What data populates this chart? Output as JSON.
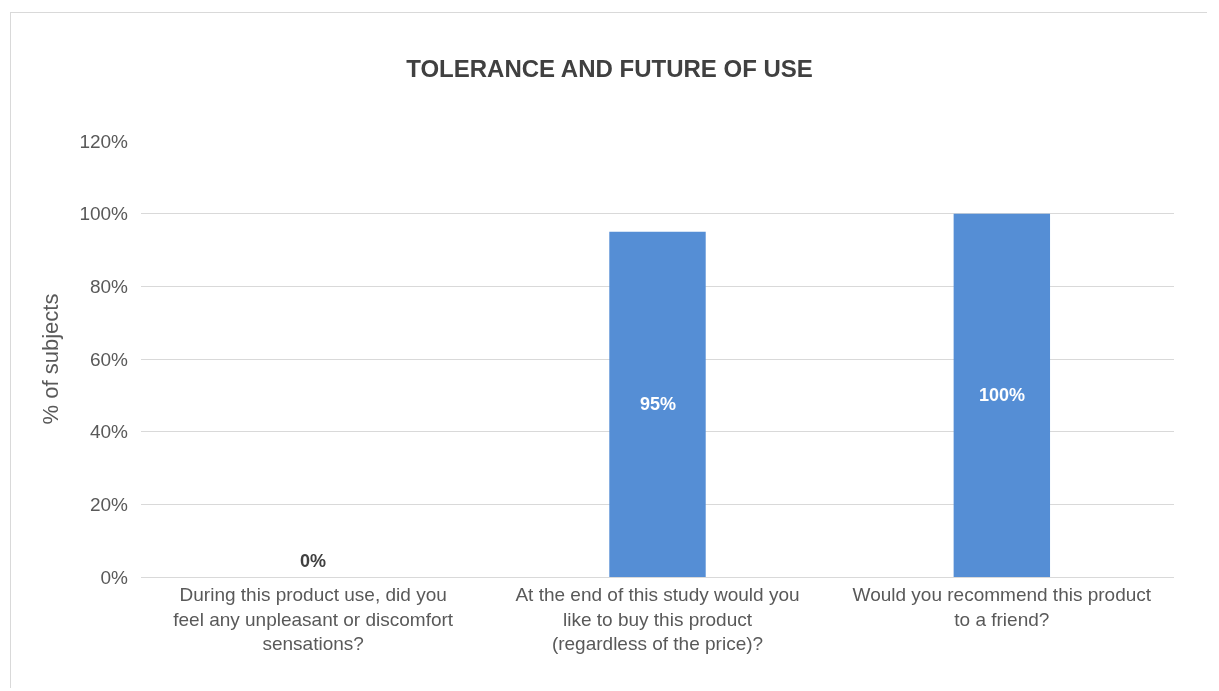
{
  "chart_data": {
    "type": "bar",
    "title": "TOLERANCE AND FUTURE OF USE",
    "ylabel": "% of subjects",
    "categories": [
      "During this product use, did you feel any unpleasant or discomfort sensations?",
      "At the end of this study would you like to buy this product (regardless of the price)?",
      "Would you recommend this product to a friend?"
    ],
    "values": [
      0,
      95,
      100
    ],
    "value_labels": [
      "0%",
      "95%",
      "100%"
    ],
    "color": "#558ed5",
    "ylim": [
      0,
      120
    ],
    "yticks": [
      {
        "value": 0,
        "label": "0%"
      },
      {
        "value": 20,
        "label": "20%"
      },
      {
        "value": 40,
        "label": "40%"
      },
      {
        "value": 60,
        "label": "60%"
      },
      {
        "value": 80,
        "label": "80%"
      },
      {
        "value": 100,
        "label": "100%"
      },
      {
        "value": 120,
        "label": "120%"
      }
    ],
    "grid": "y"
  }
}
